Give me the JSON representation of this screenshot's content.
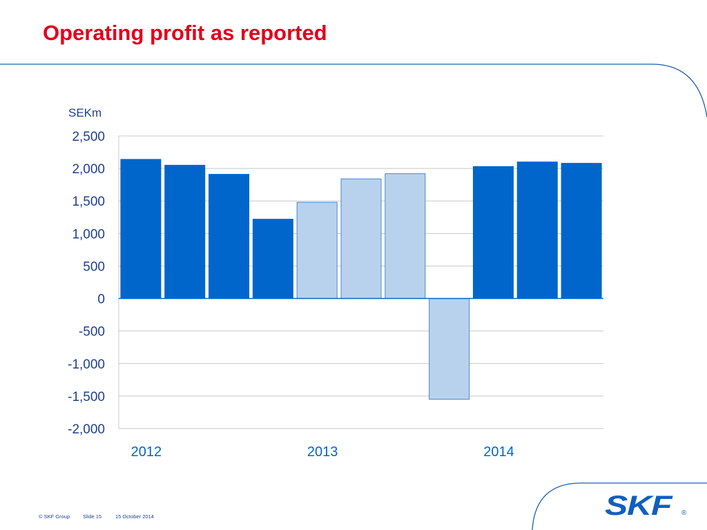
{
  "slide": {
    "title": "Operating profit as reported",
    "footer": {
      "copyright": "© SKF Group",
      "slide_label": "Slide 15",
      "date": "15 October 2014"
    },
    "logo_text": "SKF",
    "logo_registered": "®"
  },
  "colors": {
    "title": "#e2001a",
    "bar_dark": "#0066cc",
    "bar_light": "#b8d2ee",
    "bar_light_border": "#4a86cc",
    "text": "#1f3f8f",
    "grid": "#c8c8c8",
    "frame": "#1f5faf"
  },
  "chart_data": {
    "type": "bar",
    "title": "",
    "ylabel": "SEKm",
    "xlabel": "",
    "ylim": [
      -2000,
      2500
    ],
    "yticks": [
      2500,
      2000,
      1500,
      1000,
      500,
      0,
      -500,
      -1000,
      -1500,
      -2000
    ],
    "ytick_labels": [
      "2,500",
      "2,000",
      "1,500",
      "1,000",
      "500",
      "0",
      "-500",
      "-1,000",
      "-1,500",
      "-2,000"
    ],
    "year_labels": [
      {
        "label": "2012",
        "bar_index": 0
      },
      {
        "label": "2013",
        "bar_index": 4
      },
      {
        "label": "2014",
        "bar_index": 8
      }
    ],
    "values": [
      2140,
      2050,
      1910,
      1220,
      1480,
      1840,
      1920,
      -1550,
      2030,
      2100,
      2080
    ],
    "styles": [
      "dark",
      "dark",
      "dark",
      "dark",
      "light",
      "light",
      "light",
      "light",
      "dark",
      "dark",
      "dark"
    ],
    "grid": true,
    "legend": "none"
  }
}
